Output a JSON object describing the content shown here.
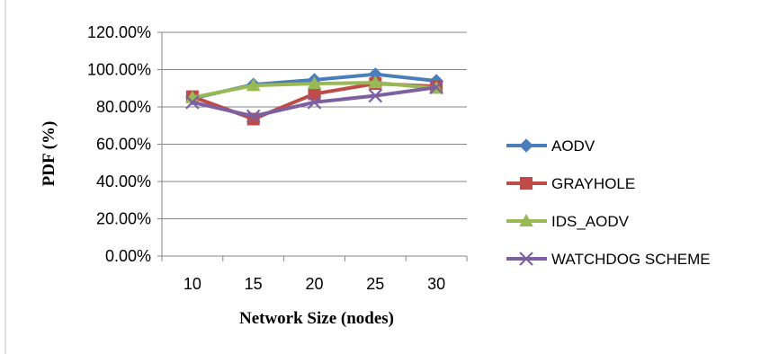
{
  "chart_data": {
    "type": "line",
    "title": "",
    "xlabel": "Network Size (nodes)",
    "ylabel": "PDF (%)",
    "categories": [
      "10",
      "15",
      "20",
      "25",
      "30"
    ],
    "y_ticks": [
      "0.00%",
      "20.00%",
      "40.00%",
      "60.00%",
      "80.00%",
      "100.00%",
      "120.00%"
    ],
    "ylim": [
      0,
      120
    ],
    "grid": true,
    "legend_position": "right",
    "series": [
      {
        "name": "AODV",
        "values": [
          84.5,
          92.0,
          94.5,
          97.5,
          94.0
        ],
        "color": "#4a7ebb",
        "marker": "diamond"
      },
      {
        "name": "GRAYHOLE",
        "values": [
          85.5,
          73.5,
          87.0,
          92.5,
          91.0
        ],
        "color": "#be4b48",
        "marker": "square"
      },
      {
        "name": "IDS_AODV",
        "values": [
          85.0,
          91.5,
          92.5,
          93.0,
          90.0
        ],
        "color": "#98b954",
        "marker": "triangle"
      },
      {
        "name": "WATCHDOG SCHEME",
        "values": [
          82.5,
          75.0,
          82.5,
          86.0,
          90.5
        ],
        "color": "#7d60a0",
        "marker": "x"
      }
    ]
  }
}
